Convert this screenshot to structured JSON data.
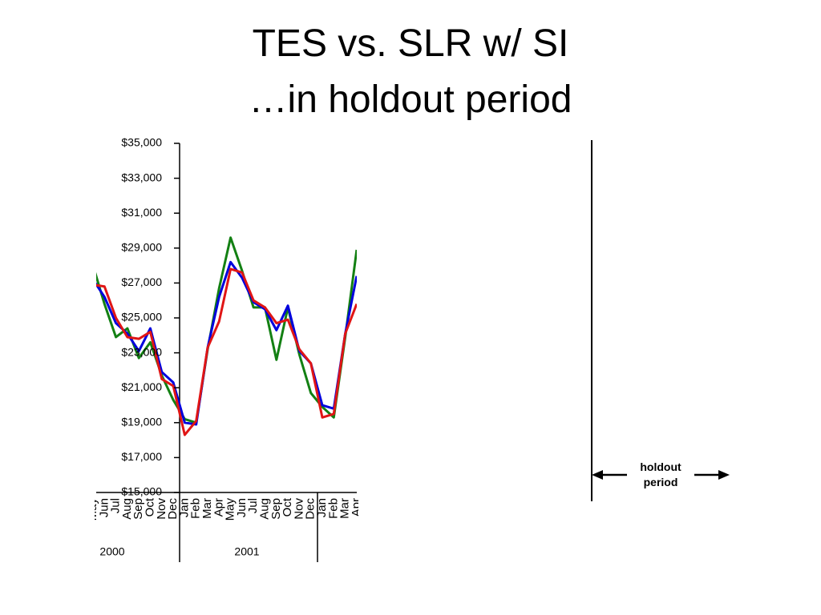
{
  "chart_data": {
    "type": "line",
    "title": "TES vs. SLR w/ SI",
    "subtitle": "…in holdout period",
    "annotation": "holdout period",
    "categories": [
      "May",
      "Jun",
      "Jul",
      "Aug",
      "Sep",
      "Oct",
      "Nov",
      "Dec",
      "Jan",
      "Feb",
      "Mar",
      "Apr",
      "May",
      "Jun",
      "Jul",
      "Aug",
      "Sep",
      "Oct",
      "Nov",
      "Dec",
      "Jan",
      "Feb",
      "Mar",
      "Apr"
    ],
    "x_groups": [
      "2000",
      "2001"
    ],
    "series": [
      {
        "color": "#138013",
        "values": [
          28000,
          25800,
          23900,
          24400,
          22700,
          23600,
          21700,
          20300,
          19200,
          19000,
          23200,
          26700,
          29600,
          27700,
          25600,
          25600,
          22600,
          25600,
          22900,
          20700,
          19900,
          19300,
          23900,
          28900
        ]
      },
      {
        "color": "#0000dd",
        "values": [
          27200,
          26200,
          24700,
          24100,
          23100,
          24400,
          21900,
          21300,
          19000,
          18900,
          23300,
          26200,
          28200,
          27300,
          25900,
          25500,
          24300,
          25700,
          23100,
          22400,
          20000,
          19800,
          24100,
          27400
        ]
      },
      {
        "color": "#e01515",
        "values": [
          26900,
          26800,
          25000,
          23900,
          23800,
          24200,
          21500,
          21100,
          18300,
          19100,
          23300,
          24800,
          27800,
          27600,
          26000,
          25600,
          24700,
          24900,
          23200,
          22400,
          19300,
          19500,
          24100,
          25800
        ]
      }
    ],
    "ylim": [
      15000,
      35000
    ],
    "yticks": [
      {
        "value": 15000,
        "label": "$15,000"
      },
      {
        "value": 17000,
        "label": "$17,000"
      },
      {
        "value": 19000,
        "label": "$19,000"
      },
      {
        "value": 21000,
        "label": "$21,000"
      },
      {
        "value": 23000,
        "label": "$23,000"
      },
      {
        "value": 25000,
        "label": "$25,000"
      },
      {
        "value": 27000,
        "label": "$27,000"
      },
      {
        "value": 29000,
        "label": "$29,000"
      },
      {
        "value": 31000,
        "label": "$31,000"
      },
      {
        "value": 33000,
        "label": "$33,000"
      },
      {
        "value": 35000,
        "label": "$35,000"
      }
    ]
  }
}
